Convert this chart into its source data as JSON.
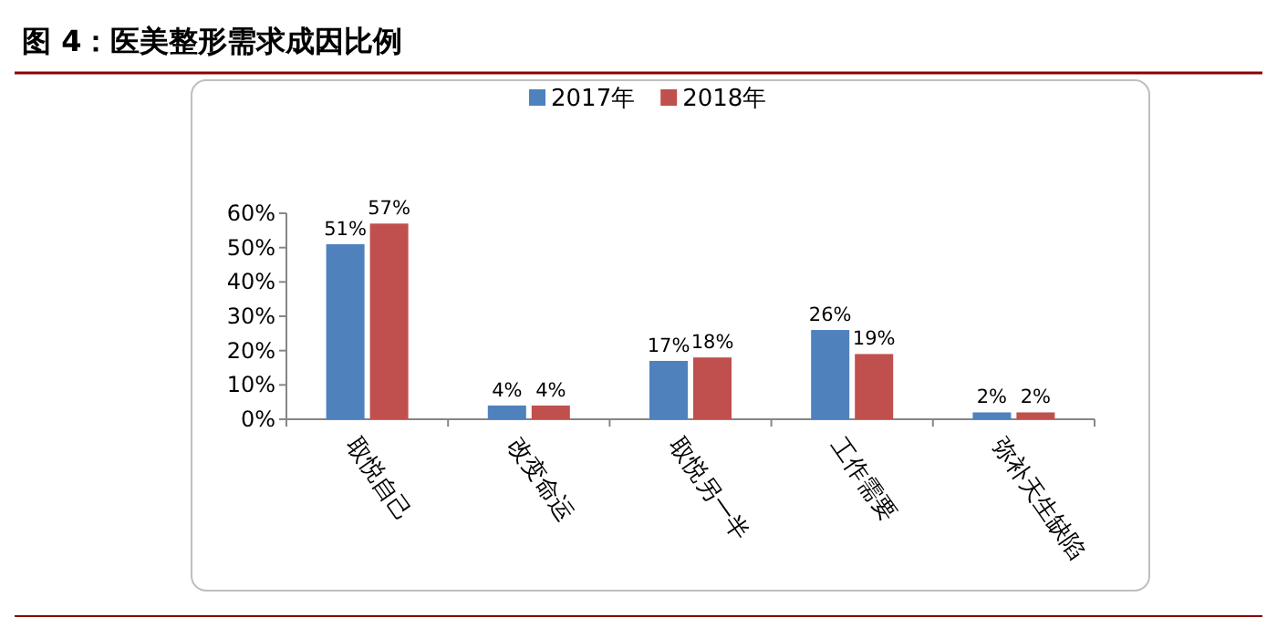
{
  "chart_data": {
    "type": "bar",
    "title": "图 4：医美整形需求成因比例",
    "categories": [
      "取悦自己",
      "改变命运",
      "取悦另一半",
      "工作需要",
      "弥补天生缺陷"
    ],
    "series": [
      {
        "name": "2017年",
        "color": "#4f81bd",
        "values": [
          51,
          4,
          17,
          26,
          2
        ],
        "value_labels": [
          "51%",
          "4%",
          "17%",
          "26%",
          "2%"
        ]
      },
      {
        "name": "2018年",
        "color": "#c0504d",
        "values": [
          57,
          4,
          18,
          19,
          2
        ],
        "value_labels": [
          "57%",
          "4%",
          "18%",
          "19%",
          "2%"
        ]
      }
    ],
    "ylim": [
      0,
      60
    ],
    "yticks": [
      {
        "value": 0,
        "label": "0%"
      },
      {
        "value": 10,
        "label": "10%"
      },
      {
        "value": 20,
        "label": "20%"
      },
      {
        "value": 30,
        "label": "30%"
      },
      {
        "value": 40,
        "label": "40%"
      },
      {
        "value": 50,
        "label": "50%"
      },
      {
        "value": 60,
        "label": "60%"
      }
    ],
    "legend": "top"
  }
}
